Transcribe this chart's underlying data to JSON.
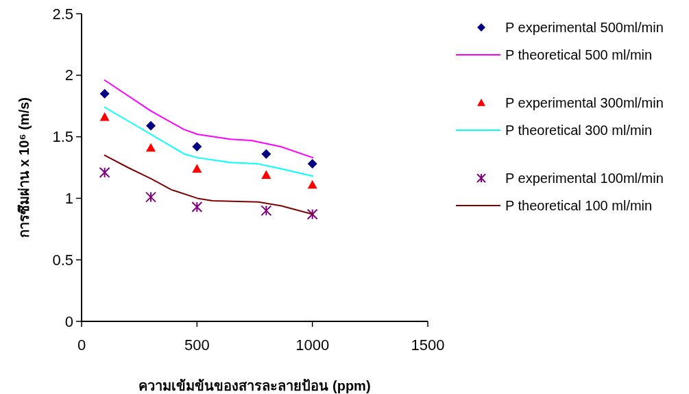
{
  "chart_data": {
    "type": "scatter",
    "xlabel": "ความเข้มข้นของสารละลายป้อน (ppm)",
    "ylabel": "การซึมผ่าน x 10⁶ (m/s)",
    "xlim": [
      0,
      1500
    ],
    "xticks": [
      0,
      500,
      1000,
      1500
    ],
    "ylim": [
      0,
      2.5
    ],
    "yticks": [
      0,
      0.5,
      1,
      1.5,
      2,
      2.5
    ],
    "grid": false,
    "legend": "right",
    "series": [
      {
        "name": "P experimental 500ml/min",
        "marker": "diamond",
        "color": "#000080",
        "x": [
          100,
          300,
          500,
          800,
          1000
        ],
        "values": [
          1.85,
          1.59,
          1.42,
          1.36,
          1.28
        ]
      },
      {
        "name": "P theoretical 500 ml/min",
        "type": "line",
        "marker": "none",
        "color": "#ff00ff",
        "x": [
          100,
          300,
          443,
          502,
          646,
          735,
          863,
          1002
        ],
        "values": [
          1.96,
          1.71,
          1.56,
          1.52,
          1.48,
          1.47,
          1.42,
          1.33
        ]
      },
      {
        "name": "P experimental 300ml/min",
        "marker": "triangle",
        "color": "#ff0000",
        "x": [
          100,
          300,
          500,
          800,
          1000
        ],
        "values": [
          1.66,
          1.41,
          1.24,
          1.19,
          1.11
        ]
      },
      {
        "name": "P theoretical 300 ml/min",
        "type": "line",
        "marker": "none",
        "color": "#00ffff",
        "x": [
          100,
          300,
          445,
          502,
          646,
          765,
          863,
          1002
        ],
        "values": [
          1.74,
          1.52,
          1.36,
          1.33,
          1.29,
          1.28,
          1.24,
          1.18
        ]
      },
      {
        "name": "P experimental 100ml/min",
        "marker": "cross",
        "color": "#800080",
        "x": [
          100,
          300,
          500,
          800,
          1000
        ],
        "values": [
          1.21,
          1.01,
          0.93,
          0.9,
          0.87
        ]
      },
      {
        "name": "P theoretical 100 ml/min",
        "type": "line",
        "marker": "none",
        "color": "#800000",
        "x": [
          100,
          201,
          300,
          389,
          502,
          567,
          765,
          863,
          1002
        ],
        "values": [
          1.35,
          1.25,
          1.16,
          1.07,
          1.0,
          0.98,
          0.97,
          0.94,
          0.87
        ]
      }
    ]
  }
}
